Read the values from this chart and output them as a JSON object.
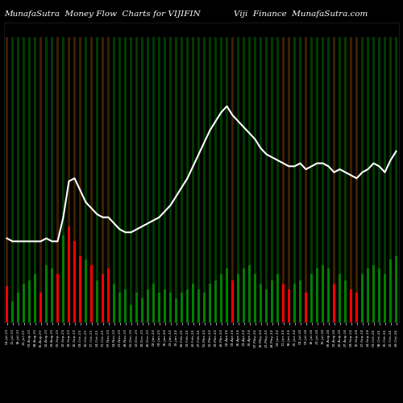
{
  "title_left": "MunafaSutra  Money Flow  Charts for VIJIFIN",
  "title_right": "Viji  Finance  MunafaSutra.com",
  "background_color": "#000000",
  "bar_colors": [
    "red",
    "green",
    "green",
    "green",
    "green",
    "green",
    "red",
    "green",
    "green",
    "red",
    "green",
    "red",
    "red",
    "red",
    "green",
    "red",
    "green",
    "red",
    "red",
    "green",
    "green",
    "green",
    "green",
    "green",
    "green",
    "green",
    "green",
    "green",
    "green",
    "green",
    "green",
    "green",
    "green",
    "green",
    "green",
    "green",
    "green",
    "green",
    "green",
    "green",
    "red",
    "green",
    "green",
    "green",
    "green",
    "green",
    "green",
    "green",
    "green",
    "red",
    "red",
    "green",
    "green",
    "red",
    "green",
    "green",
    "green",
    "green",
    "red",
    "green",
    "green",
    "red",
    "red",
    "green",
    "green",
    "green",
    "green",
    "green",
    "green",
    "green"
  ],
  "bar_heights": [
    0.12,
    0.07,
    0.1,
    0.13,
    0.14,
    0.16,
    0.1,
    0.19,
    0.18,
    0.16,
    0.29,
    0.32,
    0.27,
    0.22,
    0.21,
    0.19,
    0.14,
    0.16,
    0.18,
    0.13,
    0.1,
    0.11,
    0.06,
    0.1,
    0.08,
    0.11,
    0.13,
    0.1,
    0.11,
    0.1,
    0.08,
    0.1,
    0.11,
    0.13,
    0.11,
    0.1,
    0.13,
    0.14,
    0.16,
    0.18,
    0.14,
    0.16,
    0.18,
    0.19,
    0.16,
    0.13,
    0.11,
    0.14,
    0.16,
    0.13,
    0.11,
    0.13,
    0.14,
    0.1,
    0.16,
    0.18,
    0.19,
    0.18,
    0.13,
    0.16,
    0.14,
    0.11,
    0.1,
    0.16,
    0.18,
    0.19,
    0.18,
    0.16,
    0.21,
    0.22
  ],
  "tall_bar_heights": [
    0.95,
    0.95,
    0.95,
    0.95,
    0.95,
    0.95,
    0.95,
    0.95,
    0.95,
    0.95,
    0.95,
    0.95,
    0.95,
    0.95,
    0.95,
    0.95,
    0.95,
    0.95,
    0.95,
    0.95,
    0.95,
    0.95,
    0.95,
    0.95,
    0.95,
    0.95,
    0.95,
    0.95,
    0.95,
    0.95,
    0.95,
    0.95,
    0.95,
    0.95,
    0.95,
    0.95,
    0.95,
    0.95,
    0.95,
    0.95,
    0.95,
    0.95,
    0.95,
    0.95,
    0.95,
    0.95,
    0.95,
    0.95,
    0.95,
    0.95,
    0.95,
    0.95,
    0.95,
    0.95,
    0.95,
    0.95,
    0.95,
    0.95,
    0.95,
    0.95,
    0.95,
    0.95,
    0.95,
    0.95,
    0.95,
    0.95,
    0.95,
    0.95,
    0.95,
    0.95
  ],
  "tall_bar_colors": [
    "#3a2000",
    "#003a00",
    "#003a00",
    "#003a00",
    "#003a00",
    "#003a00",
    "#3a2000",
    "#003a00",
    "#003a00",
    "#3a2000",
    "#003a00",
    "#3a2000",
    "#3a2000",
    "#3a2000",
    "#003a00",
    "#3a2000",
    "#003a00",
    "#3a2000",
    "#3a2000",
    "#003a00",
    "#003a00",
    "#003a00",
    "#003a00",
    "#003a00",
    "#003a00",
    "#003a00",
    "#003a00",
    "#003a00",
    "#003a00",
    "#003a00",
    "#003a00",
    "#003a00",
    "#003a00",
    "#003a00",
    "#003a00",
    "#003a00",
    "#003a00",
    "#003a00",
    "#003a00",
    "#003a00",
    "#3a2000",
    "#003a00",
    "#003a00",
    "#003a00",
    "#003a00",
    "#003a00",
    "#003a00",
    "#003a00",
    "#003a00",
    "#3a2000",
    "#3a2000",
    "#003a00",
    "#003a00",
    "#3a2000",
    "#003a00",
    "#003a00",
    "#003a00",
    "#003a00",
    "#3a2000",
    "#003a00",
    "#003a00",
    "#3a2000",
    "#3a2000",
    "#003a00",
    "#003a00",
    "#003a00",
    "#003a00",
    "#003a00",
    "#003a00",
    "#003a00"
  ],
  "line_values": [
    0.28,
    0.27,
    0.27,
    0.27,
    0.27,
    0.27,
    0.27,
    0.28,
    0.27,
    0.27,
    0.35,
    0.47,
    0.48,
    0.44,
    0.4,
    0.38,
    0.36,
    0.35,
    0.35,
    0.33,
    0.31,
    0.3,
    0.3,
    0.31,
    0.32,
    0.33,
    0.34,
    0.35,
    0.37,
    0.39,
    0.42,
    0.45,
    0.48,
    0.52,
    0.56,
    0.6,
    0.64,
    0.67,
    0.7,
    0.72,
    0.69,
    0.67,
    0.65,
    0.63,
    0.61,
    0.58,
    0.56,
    0.55,
    0.54,
    0.53,
    0.52,
    0.52,
    0.53,
    0.51,
    0.52,
    0.53,
    0.53,
    0.52,
    0.5,
    0.51,
    0.5,
    0.49,
    0.48,
    0.5,
    0.51,
    0.53,
    0.52,
    0.5,
    0.54,
    0.57
  ],
  "x_labels": [
    "04-Jul-23",
    "11-Jul-23",
    "18-Jul-23",
    "25-Jul-23",
    "01-Aug-23",
    "08-Aug-23",
    "15-Aug-23",
    "22-Aug-23",
    "29-Aug-23",
    "05-Sep-23",
    "12-Sep-23",
    "19-Sep-23",
    "26-Sep-23",
    "03-Oct-23",
    "10-Oct-23",
    "17-Oct-23",
    "24-Oct-23",
    "31-Oct-23",
    "07-Nov-23",
    "14-Nov-23",
    "21-Nov-23",
    "28-Nov-23",
    "05-Dec-23",
    "12-Dec-23",
    "19-Dec-23",
    "26-Dec-23",
    "02-Jan-24",
    "09-Jan-24",
    "16-Jan-24",
    "23-Jan-24",
    "30-Jan-24",
    "06-Feb-24",
    "13-Feb-24",
    "20-Feb-24",
    "27-Feb-24",
    "05-Mar-24",
    "12-Mar-24",
    "19-Mar-24",
    "26-Mar-24",
    "02-Apr-24",
    "09-Apr-24",
    "16-Apr-24",
    "23-Apr-24",
    "30-Apr-24",
    "07-May-24",
    "14-May-24",
    "21-May-24",
    "28-May-24",
    "04-Jun-24",
    "11-Jun-24",
    "18-Jun-24",
    "25-Jun-24",
    "02-Jul-24",
    "09-Jul-24",
    "16-Jul-24",
    "23-Jul-24",
    "30-Jul-24",
    "06-Aug-24",
    "13-Aug-24",
    "20-Aug-24",
    "27-Aug-24",
    "03-Sep-24",
    "10-Sep-24",
    "17-Sep-24",
    "24-Sep-24",
    "01-Oct-24",
    "08-Oct-24",
    "15-Oct-24",
    "22-Oct-24",
    "29-Oct-24"
  ],
  "title_fontsize": 7.5,
  "line_color": "#ffffff",
  "line_width": 1.5,
  "ylim": [
    0,
    1.0
  ]
}
